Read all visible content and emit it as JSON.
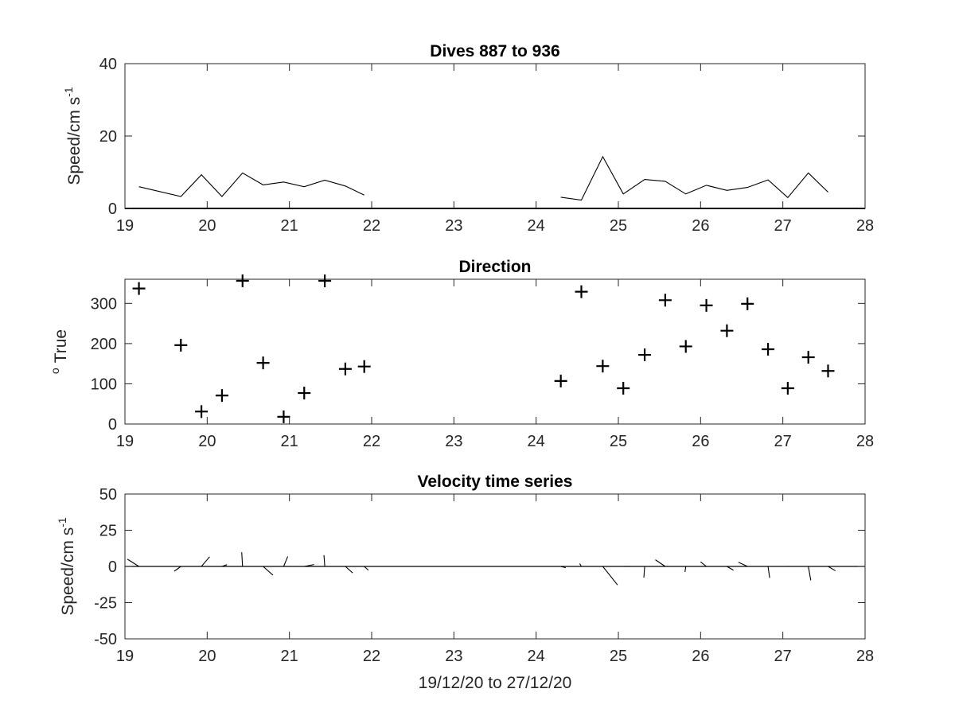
{
  "chart_data": [
    {
      "type": "line",
      "title": "Dives 887 to 936",
      "ylabel": "Speed/cm s",
      "ylabel_superscript": "-1",
      "xlim": [
        19,
        28
      ],
      "ylim": [
        0,
        40
      ],
      "xticks": [
        19,
        20,
        21,
        22,
        23,
        24,
        25,
        26,
        27,
        28
      ],
      "yticks": [
        0,
        20,
        40
      ],
      "series": [
        {
          "segments": [
            [
              [
                19.17,
                6.0
              ],
              [
                19.68,
                3.3
              ],
              [
                19.93,
                9.3
              ],
              [
                20.18,
                3.3
              ],
              [
                20.43,
                9.8
              ],
              [
                20.68,
                6.5
              ],
              [
                20.93,
                7.3
              ],
              [
                21.18,
                6.0
              ],
              [
                21.43,
                7.8
              ],
              [
                21.68,
                6.2
              ],
              [
                21.91,
                3.7
              ]
            ],
            [
              [
                24.3,
                3.1
              ],
              [
                24.55,
                2.3
              ],
              [
                24.81,
                14.3
              ],
              [
                25.06,
                4.0
              ],
              [
                25.32,
                8.0
              ],
              [
                25.57,
                7.5
              ],
              [
                25.82,
                4.0
              ],
              [
                26.07,
                6.4
              ],
              [
                26.32,
                5.0
              ],
              [
                26.57,
                5.8
              ],
              [
                26.82,
                7.9
              ],
              [
                27.06,
                3.0
              ],
              [
                27.31,
                9.8
              ],
              [
                27.55,
                4.5
              ]
            ]
          ]
        }
      ],
      "baseline": 0
    },
    {
      "type": "scatter",
      "title": "Direction",
      "ylabel": "True",
      "ylabel_superscript": "o",
      "xlim": [
        19,
        28
      ],
      "ylim": [
        0,
        360
      ],
      "xticks": [
        19,
        20,
        21,
        22,
        23,
        24,
        25,
        26,
        27,
        28
      ],
      "yticks": [
        0,
        100,
        200,
        300
      ],
      "marker": "+",
      "x": [
        19.17,
        19.68,
        19.93,
        20.18,
        20.43,
        20.68,
        20.93,
        21.18,
        21.43,
        21.68,
        21.91,
        24.3,
        24.55,
        24.81,
        25.06,
        25.32,
        25.57,
        25.82,
        26.07,
        26.32,
        26.57,
        26.82,
        27.06,
        27.31,
        27.55
      ],
      "y": [
        337,
        196,
        31,
        71,
        356,
        152,
        18,
        77,
        356,
        137,
        143,
        107,
        329,
        144,
        89,
        172,
        308,
        193,
        295,
        232,
        299,
        186,
        89,
        166,
        132
      ]
    },
    {
      "type": "line",
      "title": "Velocity time series",
      "ylabel": "Speed/cm s",
      "ylabel_superscript": "-1",
      "xlabel": "19/12/20 to 27/12/20",
      "xlim": [
        19,
        28
      ],
      "ylim": [
        -50,
        50
      ],
      "xticks": [
        19,
        20,
        21,
        22,
        23,
        24,
        25,
        26,
        27,
        28
      ],
      "yticks": [
        -50,
        -25,
        0,
        25,
        50
      ],
      "stick_plot": true,
      "baseline": 0,
      "sticks": [
        {
          "x": 19.17,
          "u": -0.14,
          "v": 5.0
        },
        {
          "x": 19.68,
          "u": -0.08,
          "v": -3.3
        },
        {
          "x": 19.93,
          "u": 0.1,
          "v": 6.7
        },
        {
          "x": 20.18,
          "u": 0.06,
          "v": 1.2
        },
        {
          "x": 20.43,
          "u": -0.01,
          "v": 9.8
        },
        {
          "x": 20.68,
          "u": 0.12,
          "v": -6.0
        },
        {
          "x": 20.93,
          "u": 0.05,
          "v": 6.9
        },
        {
          "x": 21.18,
          "u": 0.12,
          "v": 1.3
        },
        {
          "x": 21.43,
          "u": -0.01,
          "v": 7.8
        },
        {
          "x": 21.68,
          "u": 0.09,
          "v": -4.5
        },
        {
          "x": 21.91,
          "u": 0.05,
          "v": -2.6
        },
        {
          "x": 24.3,
          "u": 0.06,
          "v": -0.9
        },
        {
          "x": 24.55,
          "u": -0.02,
          "v": 2.0
        },
        {
          "x": 24.81,
          "u": 0.18,
          "v": -12.8
        },
        {
          "x": 25.06,
          "u": 0.08,
          "v": 0.0
        },
        {
          "x": 25.32,
          "u": -0.01,
          "v": -7.7
        },
        {
          "x": 25.57,
          "u": -0.12,
          "v": 4.6
        },
        {
          "x": 25.82,
          "u": -0.01,
          "v": -3.8
        },
        {
          "x": 26.07,
          "u": -0.07,
          "v": 3.1
        },
        {
          "x": 26.32,
          "u": 0.08,
          "v": -2.6
        },
        {
          "x": 26.57,
          "u": -0.11,
          "v": 2.9
        },
        {
          "x": 26.82,
          "u": 0.02,
          "v": -7.9
        },
        {
          "x": 27.06,
          "u": 0.01,
          "v": 0.1
        },
        {
          "x": 27.31,
          "u": 0.03,
          "v": -9.6
        },
        {
          "x": 27.55,
          "u": 0.09,
          "v": -3.0
        }
      ]
    }
  ]
}
